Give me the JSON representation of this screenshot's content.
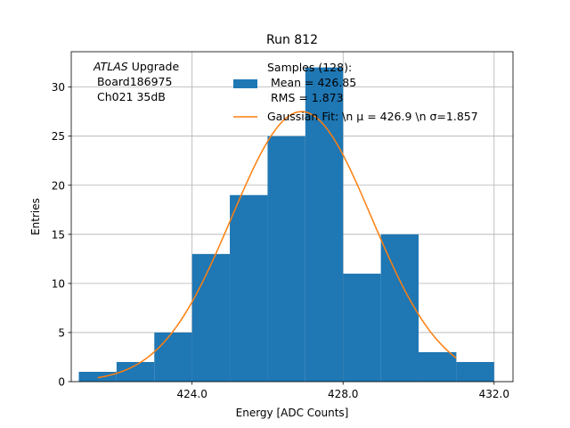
{
  "chart_data": {
    "type": "bar",
    "title": "Run 812",
    "xlabel": "Energy [ADC Counts]",
    "ylabel": "Entries",
    "xlim": [
      420.8,
      432.5
    ],
    "ylim": [
      0,
      33.6
    ],
    "xticks": [
      424,
      428,
      432
    ],
    "xtick_labels": [
      "424.0",
      "428.0",
      "432.0"
    ],
    "yticks": [
      0,
      5,
      10,
      15,
      20,
      25,
      30
    ],
    "yticks_labels": [
      "0",
      "5",
      "10",
      "15",
      "20",
      "25",
      "30"
    ],
    "grid": true,
    "histogram": {
      "name": "Samples",
      "bin_edges": [
        421.0,
        422.0,
        423.0,
        424.0,
        425.0,
        426.0,
        427.0,
        428.0,
        429.0,
        430.0,
        431.0,
        432.0
      ],
      "counts": [
        1,
        2,
        5,
        13,
        19,
        25,
        32,
        11,
        15,
        3,
        2
      ],
      "color": "#1f77b4"
    },
    "fit": {
      "name": "Gaussian Fit",
      "mu": 426.9,
      "sigma": 1.857,
      "amplitude": 27.5,
      "x_range": [
        421.5,
        431.0
      ],
      "color": "#ff7f0e"
    },
    "annotation": {
      "line1_italic": "ATLAS",
      "line1_rest": " Upgrade",
      "line2": " Board186975",
      "line3": " Ch021 35dB"
    },
    "legend": {
      "position": "top-right",
      "hist_label_lines": [
        "Samples (128):",
        " Mean = 426.85",
        " RMS = 1.873"
      ],
      "fit_label": "Gaussian Fit: \\n μ = 426.9 \\n σ=1.857"
    }
  }
}
